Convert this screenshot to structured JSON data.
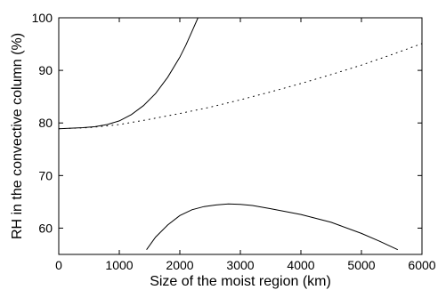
{
  "chart_data": {
    "type": "line",
    "title": "",
    "xlabel": "Size of the moist region (km)",
    "ylabel": "RH in the convective column (%)",
    "xlim": [
      0,
      6000
    ],
    "ylim": [
      55,
      100
    ],
    "xticks": [
      0,
      1000,
      2000,
      3000,
      4000,
      5000,
      6000
    ],
    "yticks": [
      60,
      70,
      80,
      90,
      100
    ],
    "grid": false,
    "legend": "none",
    "series": [
      {
        "style": "solid",
        "color": "#000000",
        "x": [
          0,
          200,
          400,
          600,
          800,
          1000,
          1200,
          1400,
          1600,
          1800,
          2000,
          2100,
          2200,
          2300
        ],
        "y": [
          78.9,
          79.0,
          79.1,
          79.3,
          79.7,
          80.4,
          81.6,
          83.3,
          85.6,
          88.7,
          92.5,
          94.8,
          97.4,
          100
        ]
      },
      {
        "style": "dotted",
        "color": "#000000",
        "x": [
          0,
          500,
          1000,
          1500,
          2000,
          2500,
          3000,
          3500,
          4000,
          4500,
          5000,
          5500,
          6000
        ],
        "y": [
          78.9,
          79.1,
          79.7,
          80.7,
          81.8,
          83.0,
          84.4,
          85.9,
          87.5,
          89.2,
          91.0,
          93.0,
          95.1
        ]
      },
      {
        "style": "solid",
        "color": "#000000",
        "x": [
          1450,
          1600,
          1800,
          2000,
          2200,
          2400,
          2600,
          2800,
          3000,
          3200,
          3500,
          4000,
          4500,
          5000,
          5300,
          5600
        ],
        "y": [
          55.9,
          58.3,
          60.6,
          62.4,
          63.5,
          64.1,
          64.4,
          64.6,
          64.5,
          64.3,
          63.7,
          62.6,
          61.1,
          59.0,
          57.5,
          55.9
        ]
      }
    ]
  }
}
